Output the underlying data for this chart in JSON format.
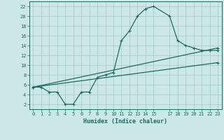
{
  "xlabel": "Humidex (Indice chaleur)",
  "bg_color": "#cce8e6",
  "grid_color": "#aaccca",
  "line_color": "#1a6b5e",
  "xlim": [
    -0.5,
    23.5
  ],
  "ylim": [
    1,
    23
  ],
  "xticks": [
    0,
    1,
    2,
    3,
    4,
    5,
    6,
    7,
    8,
    9,
    10,
    11,
    12,
    13,
    14,
    15,
    17,
    18,
    19,
    20,
    21,
    22,
    23
  ],
  "yticks": [
    2,
    4,
    6,
    8,
    10,
    12,
    14,
    16,
    18,
    20,
    22
  ],
  "line1_x": [
    0,
    1,
    2,
    3,
    4,
    5,
    6,
    7,
    8,
    9,
    10,
    11,
    12,
    13,
    14,
    15,
    17,
    18,
    19,
    20,
    21,
    22,
    23
  ],
  "line1_y": [
    5.5,
    5.5,
    4.5,
    4.5,
    2.0,
    2.0,
    4.5,
    4.5,
    7.5,
    8.0,
    8.5,
    15.0,
    17.0,
    20.0,
    21.5,
    22.0,
    20.0,
    15.0,
    14.0,
    13.5,
    13.0,
    13.0,
    13.0
  ],
  "line2_x": [
    0,
    23
  ],
  "line2_y": [
    5.5,
    10.5
  ],
  "line3_x": [
    0,
    23
  ],
  "line3_y": [
    5.5,
    13.5
  ]
}
